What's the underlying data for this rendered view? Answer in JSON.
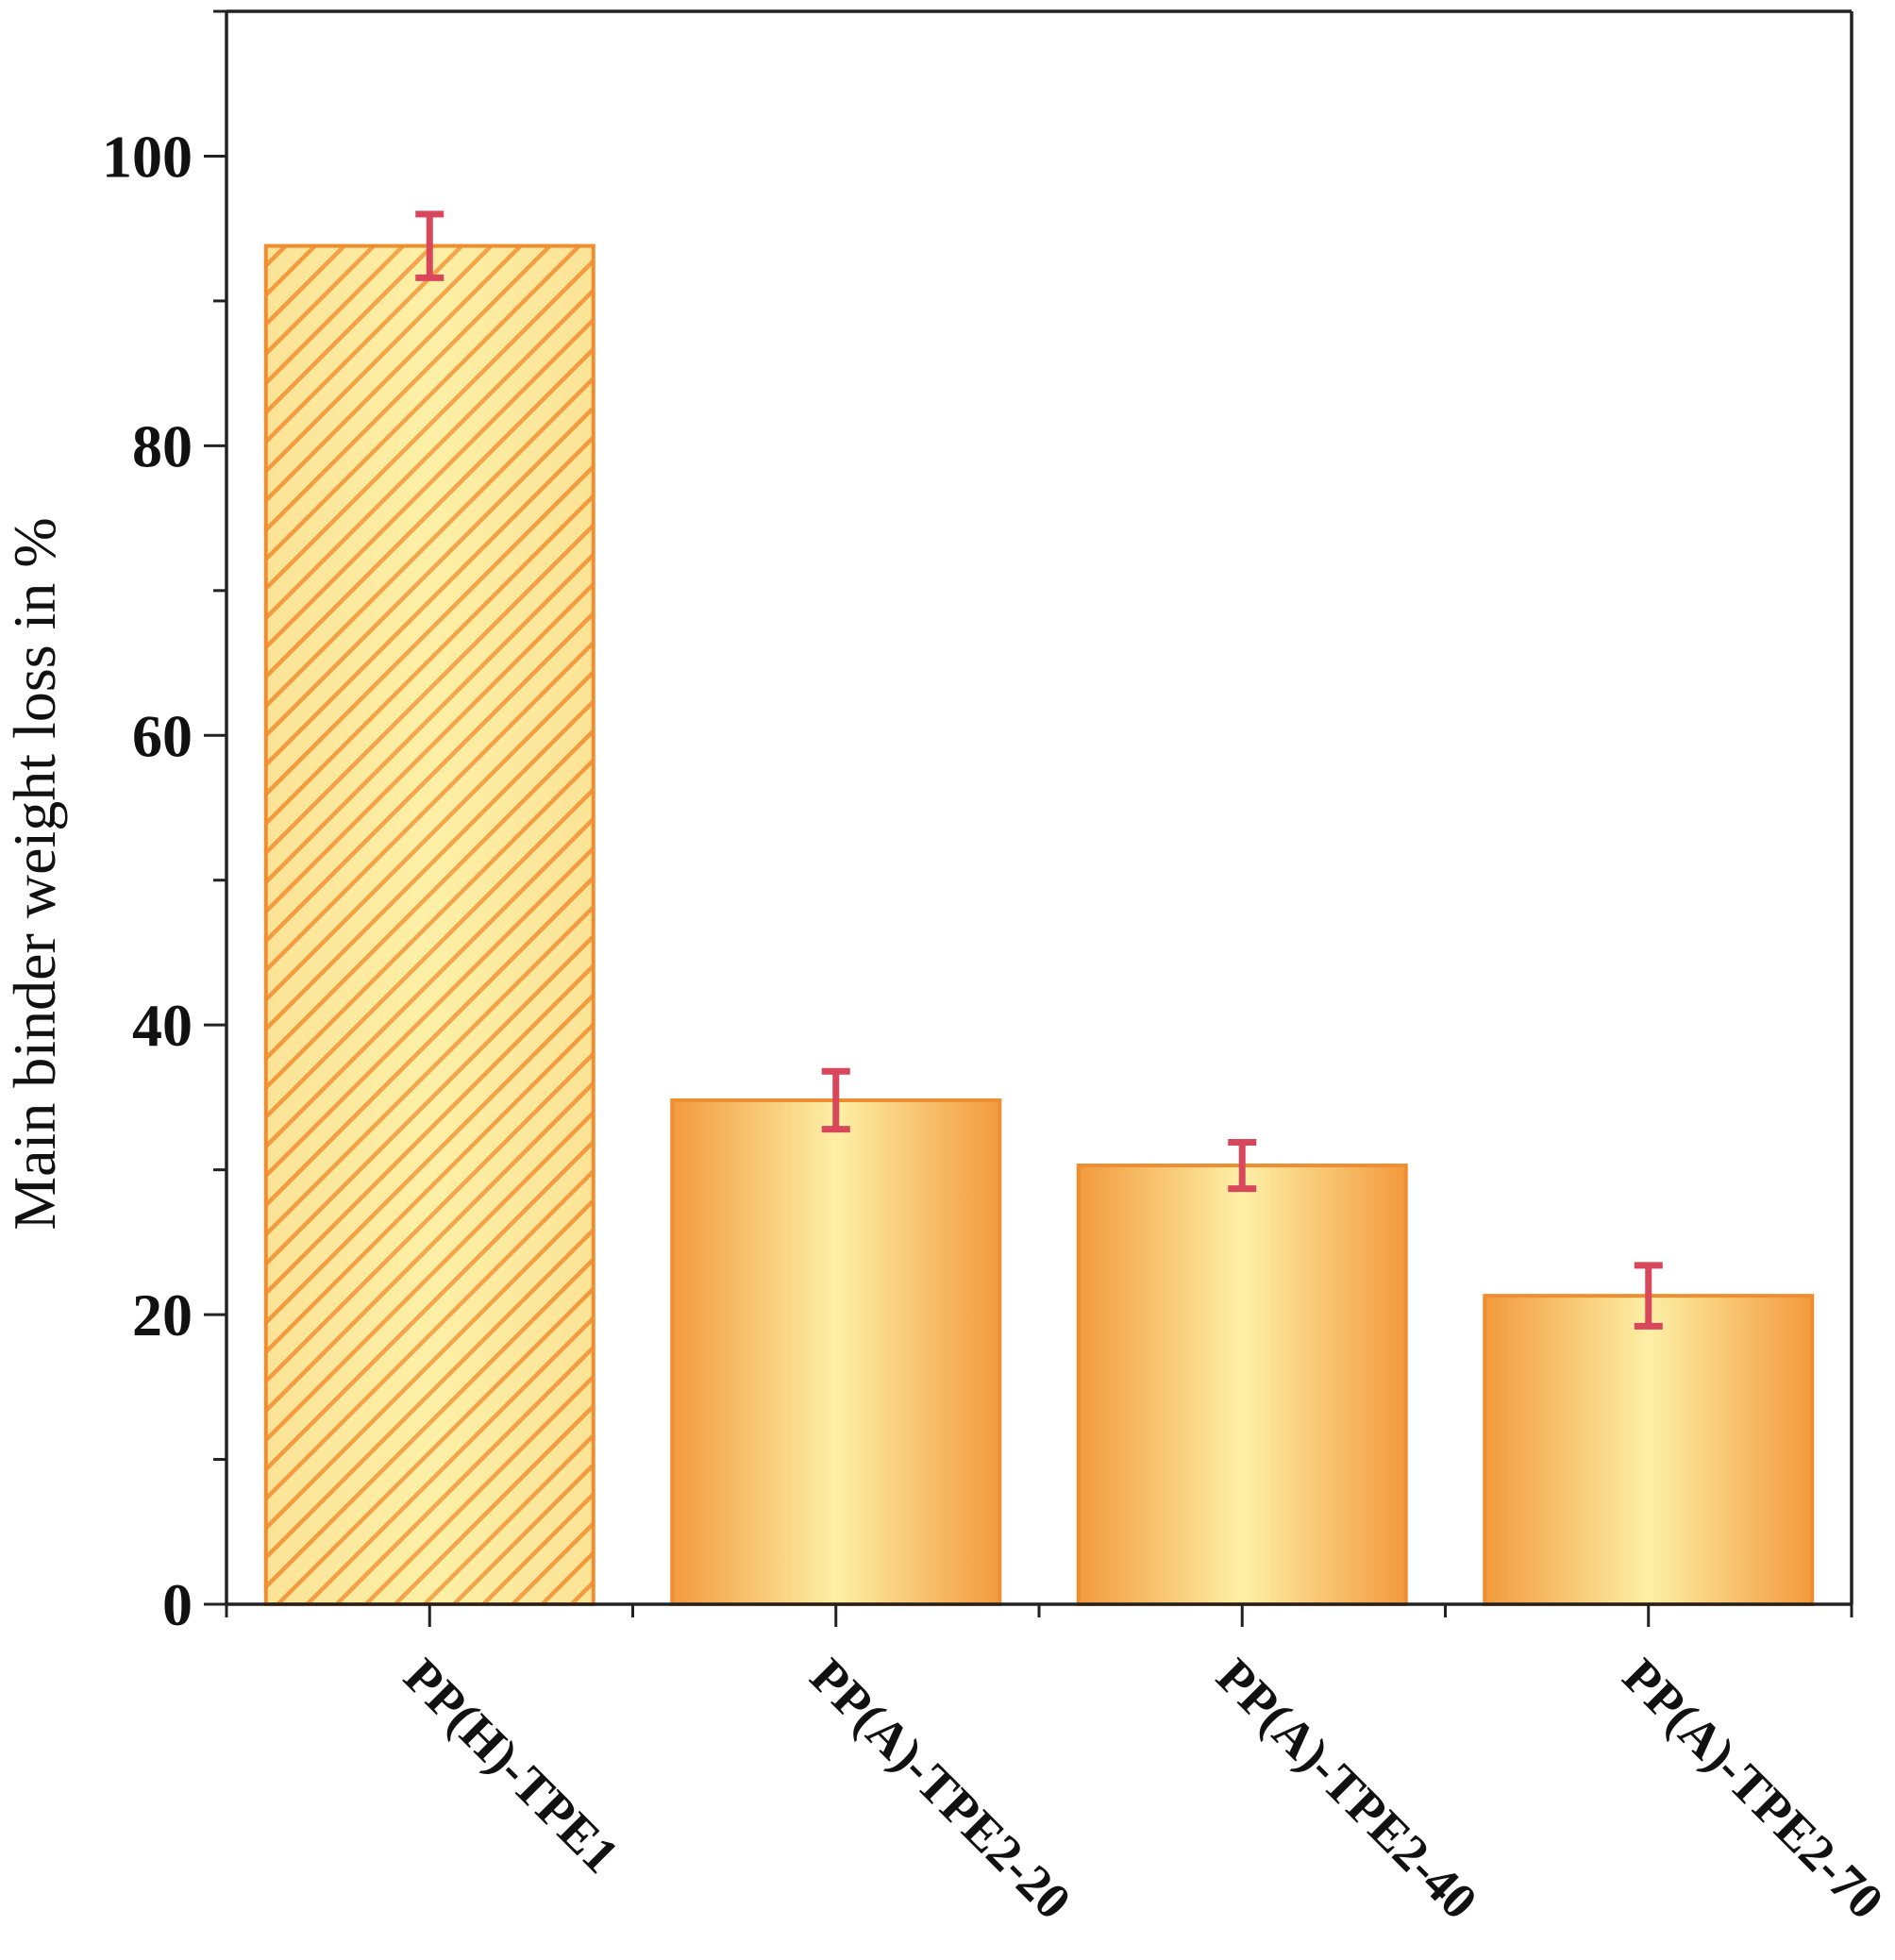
{
  "chart_data": {
    "type": "bar",
    "title": "",
    "xlabel": "",
    "ylabel": "Main binder weight loss in %",
    "categories": [
      "PP(H)-TPE1",
      "PP(A)-TPE2-20",
      "PP(A)-TPE2-40",
      "PP(A)-TPE2-70"
    ],
    "values": [
      93.8,
      34.8,
      30.3,
      21.3
    ],
    "error": [
      2.2,
      2.0,
      1.6,
      2.1
    ],
    "hatched": [
      true,
      false,
      false,
      false
    ],
    "ylim": [
      0,
      110
    ],
    "yticks": [
      0,
      20,
      40,
      60,
      80,
      100
    ],
    "yminor_step": 10,
    "grid": false,
    "legend": "none"
  },
  "colors": {
    "bar_dark": "#f39a3e",
    "bar_light": "#fdf0a6",
    "bar_edge": "#ee8e30",
    "error_bar": "#d9475c",
    "axis": "#222222"
  }
}
